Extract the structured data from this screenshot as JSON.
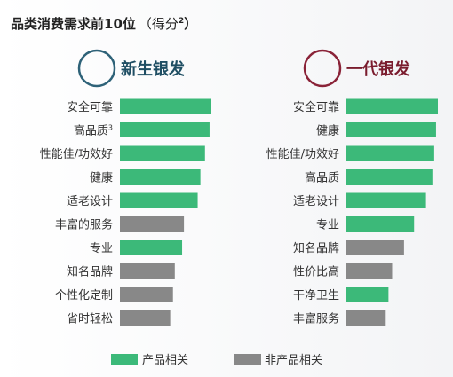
{
  "title": {
    "main": "品类消费需求前10位",
    "paren_open": "（得分",
    "sup": "2",
    "paren_close": "）"
  },
  "colors": {
    "product": "#3cb979",
    "non_product": "#888888",
    "left_circle": "#2e6278",
    "right_circle": "#8a2338",
    "left_heading": "#1f4e63",
    "right_heading": "#7a1c2e"
  },
  "chart_data": [
    {
      "type": "bar",
      "orientation": "horizontal",
      "title": "新生银发",
      "xlabel": "",
      "ylabel": "",
      "categories": [
        "安全可靠",
        "高品质",
        "性能佳/功效好",
        "健康",
        "适老设计",
        "丰富的服务",
        "专业",
        "知名品牌",
        "个性化定制",
        "省时轻松"
      ],
      "category_suffix": [
        "",
        "3",
        "",
        "",
        "",
        "",
        "",
        "",
        "",
        ""
      ],
      "values": [
        1.0,
        0.98,
        0.93,
        0.88,
        0.85,
        0.7,
        0.68,
        0.6,
        0.58,
        0.55
      ],
      "kinds": [
        "product",
        "product",
        "product",
        "product",
        "product",
        "non_product",
        "product",
        "non_product",
        "non_product",
        "non_product"
      ],
      "xlim": [
        0,
        1
      ],
      "grid": false
    },
    {
      "type": "bar",
      "orientation": "horizontal",
      "title": "一代银发",
      "xlabel": "",
      "ylabel": "",
      "categories": [
        "安全可靠",
        "健康",
        "性能佳/功效好",
        "高品质",
        "适老设计",
        "专业",
        "知名品牌",
        "性价比高",
        "干净卫生",
        "丰富服务"
      ],
      "category_suffix": [
        "",
        "",
        "",
        "",
        "",
        "",
        "",
        "",
        "",
        ""
      ],
      "values": [
        1.0,
        0.98,
        0.96,
        0.94,
        0.87,
        0.74,
        0.63,
        0.5,
        0.46,
        0.43
      ],
      "kinds": [
        "product",
        "product",
        "product",
        "product",
        "product",
        "product",
        "non_product",
        "non_product",
        "product",
        "non_product"
      ],
      "xlim": [
        0,
        1
      ],
      "grid": false
    }
  ],
  "legend": {
    "placement": "bottom",
    "items": [
      {
        "kind": "product",
        "label": "产品相关"
      },
      {
        "kind": "non_product",
        "label": "非产品相关"
      }
    ]
  }
}
